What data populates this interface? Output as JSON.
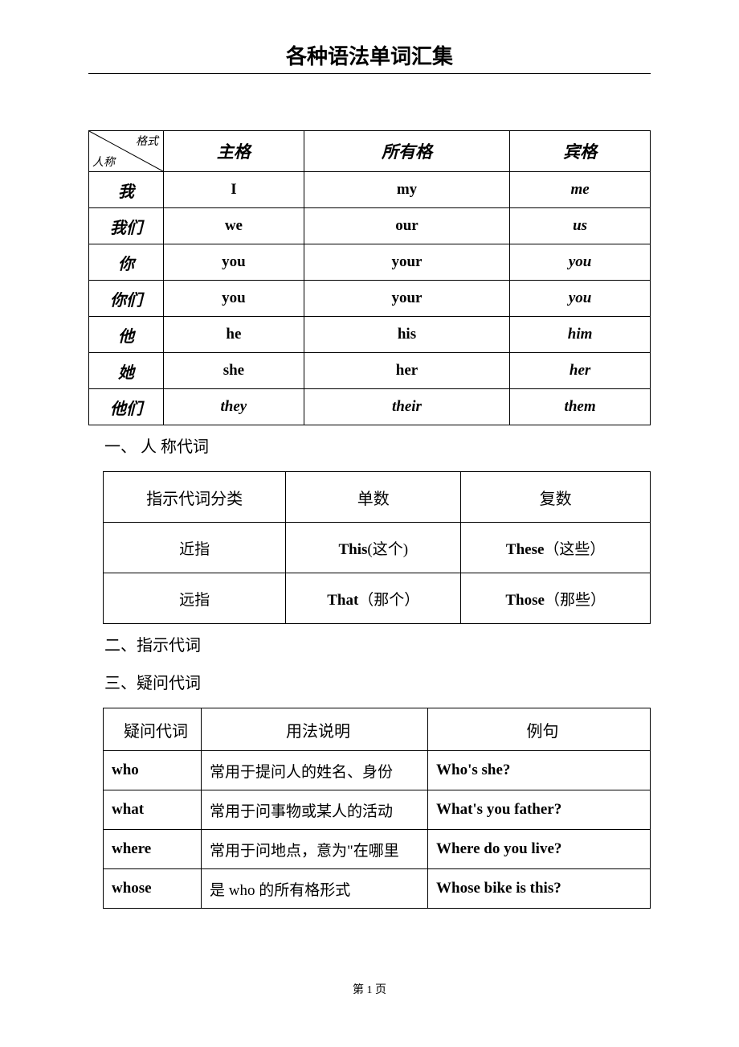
{
  "title": "各种语法单词汇集",
  "table1": {
    "diag_top": "格式",
    "diag_bottom": "人称",
    "headers": [
      "主格",
      "所有格",
      "宾格"
    ],
    "rows": [
      {
        "label": "我",
        "c1": "I",
        "c2": "my",
        "c3": "me",
        "s1": "cell-b",
        "s2": "cell-b",
        "s3": "cell-bi"
      },
      {
        "label": "我们",
        "c1": "we",
        "c2": "our",
        "c3": "us",
        "s1": "cell-b",
        "s2": "cell-b",
        "s3": "cell-bi"
      },
      {
        "label": "你",
        "c1": "you",
        "c2": "your",
        "c3": "you",
        "s1": "cell-b",
        "s2": "cell-b",
        "s3": "cell-bi"
      },
      {
        "label": "你们",
        "c1": "you",
        "c2": "your",
        "c3": "you",
        "s1": "cell-b",
        "s2": "cell-b",
        "s3": "cell-bi"
      },
      {
        "label": "他",
        "c1": "he",
        "c2": "his",
        "c3": "him",
        "s1": "cell-b",
        "s2": "cell-b",
        "s3": "cell-bi"
      },
      {
        "label": "她",
        "c1": "she",
        "c2": "her",
        "c3": "her",
        "s1": "cell-b",
        "s2": "cell-b",
        "s3": "cell-bi"
      },
      {
        "label": "他们",
        "c1": "they",
        "c2": "their",
        "c3": "them",
        "s1": "cell-bi",
        "s2": "cell-bi",
        "s3": "cell-bi"
      }
    ]
  },
  "section1": "一、 人  称代词",
  "table2": {
    "headers": [
      "指示代词分类",
      "单数",
      "复数"
    ],
    "rows": [
      {
        "label": "近指",
        "c1_en": "This",
        "c1_cn": "(这个)",
        "c2_en": "These",
        "c2_cn": "（这些）"
      },
      {
        "label": "远指",
        "c1_en": "That",
        "c1_cn": "（那个）",
        "c2_en": "Those",
        "c2_cn": "（那些）"
      }
    ]
  },
  "section2": "二、指示代词",
  "section3": "三、疑问代词",
  "table3": {
    "headers": [
      "疑问代词",
      "用法说明",
      "例句"
    ],
    "rows": [
      {
        "c1": "who",
        "c2": "常用于提问人的姓名、身份",
        "c3": "Who's she?"
      },
      {
        "c1": "what",
        "c2": "常用于问事物或某人的活动",
        "c3": "What's you father?"
      },
      {
        "c1": "where",
        "c2": "常用于问地点，意为\"在哪里",
        "c3": "Where do you live?"
      },
      {
        "c1": "whose",
        "c2": "是 who 的所有格形式",
        "c3": "Whose bike is this?"
      }
    ]
  },
  "footer": "第 1 页"
}
